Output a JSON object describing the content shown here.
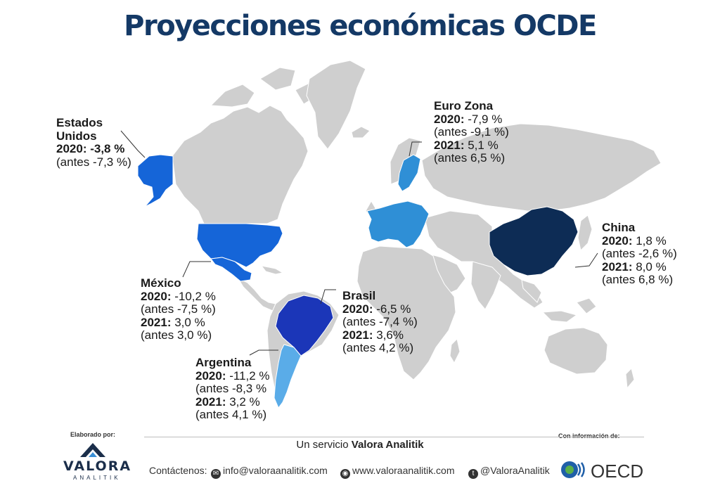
{
  "title": "Proyecciones económicas OCDE",
  "colors": {
    "title": "#143966",
    "land": "#cfcfcf",
    "usa": "#1565d8",
    "mexico": "#1565d8",
    "brasil": "#1b36b8",
    "argentina": "#5aace8",
    "eurozona": "#2f8fd6",
    "china": "#0d2c55"
  },
  "regions": {
    "usa": {
      "name": "Estados Unidos",
      "name_l1": "Estados",
      "name_l2": "Unidos",
      "y2020": "-3,8 %",
      "antes2020": "(antes -7,3 %)"
    },
    "mexico": {
      "name": "México",
      "y2020": "-10,2 %",
      "antes2020": "(antes -7,5 %)",
      "y2021": "3,0 %",
      "antes2021": "(antes 3,0 %)"
    },
    "brasil": {
      "name": "Brasil",
      "y2020": "-6,5 %",
      "antes2020": "(antes -7,4 %)",
      "y2021": "3,6%",
      "antes2021": "(antes 4,2 %)"
    },
    "argentina": {
      "name": "Argentina",
      "y2020": "-11,2 %",
      "antes2020": "(antes -8,3 %",
      "y2021": "3,2 %",
      "antes2021": "(antes 4,1 %)"
    },
    "eurozona": {
      "name": "Euro Zona",
      "y2020": "-7,9 %",
      "antes2020": "(antes -9,1 %)",
      "y2021": "5,1 %",
      "antes2021": "(antes 6,5 %)"
    },
    "china": {
      "name": "China",
      "y2020": "1,8 %",
      "antes2020": "(antes -2,6 %)",
      "y2021": "8,0 %",
      "antes2021": "(antes 6,8 %)"
    }
  },
  "year_labels": {
    "y2020": "2020:",
    "y2021": "2021:"
  },
  "footer": {
    "elaborado": "Elaborado por:",
    "informacion": "Con información de:",
    "servicio_pre": "Un servicio",
    "servicio_brand": "Valora Analitik",
    "contact_label": "Contáctenos:",
    "email": "info@valoraanalitik.com",
    "web": "www.valoraanalitik.com",
    "twitter": "@ValoraAnalitik",
    "logo_main": "VALORA",
    "logo_sub": "ANALITIK",
    "oecd": "OECD"
  }
}
